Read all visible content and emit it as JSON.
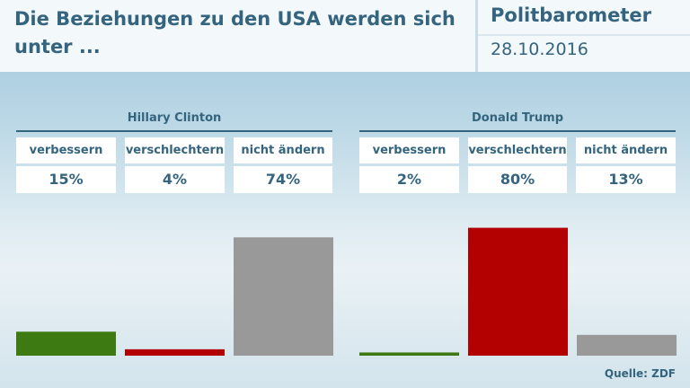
{
  "header": {
    "title": "Die Beziehungen zu den USA werden sich unter ...",
    "brand": "Politbarometer",
    "date": "28.10.2016"
  },
  "source": "Quelle: ZDF",
  "colors": {
    "verbessern": "#3e7a12",
    "verschlechtern": "#b30000",
    "nicht_aendern": "#999999",
    "text": "#34647e"
  },
  "chart_data": {
    "type": "bar",
    "title": "Die Beziehungen zu den USA werden sich unter ...",
    "categories": [
      "verbessern",
      "verschlechtern",
      "nicht ändern"
    ],
    "ylim": [
      0,
      100
    ],
    "groups": [
      {
        "name": "Hillary Clinton",
        "values": [
          15,
          4,
          74
        ],
        "labels": [
          "15%",
          "4%",
          "74%"
        ]
      },
      {
        "name": "Donald Trump",
        "values": [
          2,
          80,
          13
        ],
        "labels": [
          "2%",
          "80%",
          "13%"
        ]
      }
    ],
    "grid": false,
    "legend": "none"
  }
}
